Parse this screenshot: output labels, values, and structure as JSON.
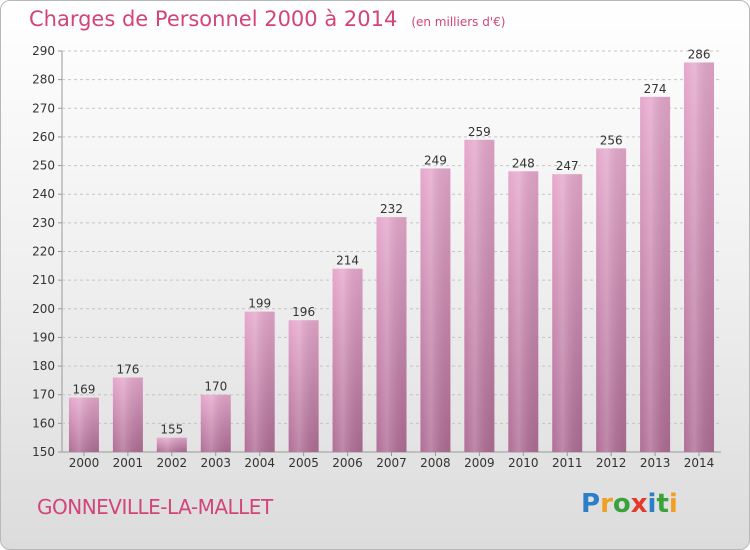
{
  "title": "Charges de Personnel 2000 à 2014",
  "subtitle": "(en milliers d'€)",
  "commune": "GONNEVILLE-LA-MALLET",
  "logo": {
    "letters": [
      {
        "ch": "P",
        "color": "#2a7fc6"
      },
      {
        "ch": "r",
        "color": "#f0a020"
      },
      {
        "ch": "o",
        "color": "#3aa23a"
      },
      {
        "ch": "x",
        "color": "#e23b2c"
      },
      {
        "ch": "i",
        "color": "#2a7fc6"
      },
      {
        "ch": "t",
        "color": "#3aa23a"
      },
      {
        "ch": "i",
        "color": "#f0a020"
      }
    ]
  },
  "colors": {
    "bar_top": "#e6a8cd",
    "bar_bottom": "#b06e96",
    "grid": "#c4c4c4",
    "axis_text": "#333333",
    "title": "#d2447a"
  },
  "chart_data": {
    "type": "bar",
    "categories": [
      "2000",
      "2001",
      "2002",
      "2003",
      "2004",
      "2005",
      "2006",
      "2007",
      "2008",
      "2009",
      "2010",
      "2011",
      "2012",
      "2013",
      "2014"
    ],
    "values": [
      169,
      176,
      155,
      170,
      199,
      196,
      214,
      232,
      249,
      259,
      248,
      247,
      256,
      274,
      286
    ],
    "ylim": [
      150,
      290
    ],
    "yticks": [
      150,
      160,
      170,
      180,
      190,
      200,
      210,
      220,
      230,
      240,
      250,
      260,
      270,
      280,
      290
    ],
    "grid": true,
    "data_labels": true
  }
}
